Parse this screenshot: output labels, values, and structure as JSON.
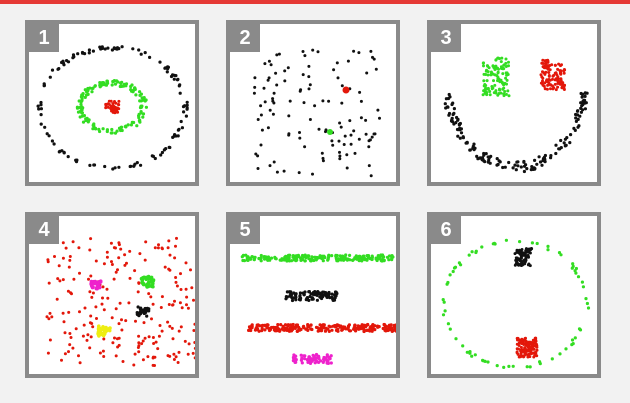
{
  "panels": [
    {
      "label": "1"
    },
    {
      "label": "2"
    },
    {
      "label": "3"
    },
    {
      "label": "4"
    },
    {
      "label": "5"
    },
    {
      "label": "6"
    }
  ],
  "colors": {
    "accent": "#e53935",
    "frame": "#8a8a8a",
    "black": "#111111",
    "green": "#33dd22",
    "red": "#e3170a",
    "magenta": "#ee22cc",
    "yellow": "#eeee11"
  }
}
